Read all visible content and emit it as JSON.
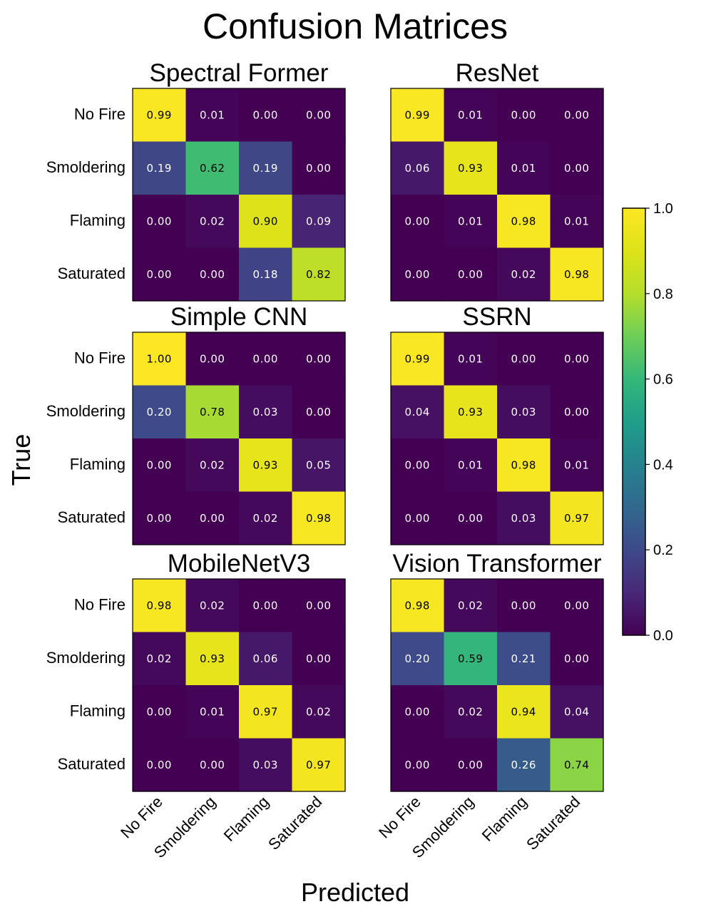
{
  "title": "Confusion Matrices",
  "chart_data": {
    "type": "heatmap",
    "xlabel": "Predicted",
    "ylabel": "True",
    "classes": [
      "No Fire",
      "Smoldering",
      "Flaming",
      "Saturated"
    ],
    "colorbar": {
      "min": 0.0,
      "max": 1.0,
      "ticks": [
        "0.0",
        "0.2",
        "0.4",
        "0.6",
        "0.8",
        "1.0"
      ],
      "colormap": "viridis"
    },
    "matrices": [
      {
        "name": "Spectral Former",
        "values": [
          [
            0.99,
            0.01,
            0.0,
            0.0
          ],
          [
            0.19,
            0.62,
            0.19,
            0.0
          ],
          [
            0.0,
            0.02,
            0.9,
            0.09
          ],
          [
            0.0,
            0.0,
            0.18,
            0.82
          ]
        ]
      },
      {
        "name": "ResNet",
        "values": [
          [
            0.99,
            0.01,
            0.0,
            0.0
          ],
          [
            0.06,
            0.93,
            0.01,
            0.0
          ],
          [
            0.0,
            0.01,
            0.98,
            0.01
          ],
          [
            0.0,
            0.0,
            0.02,
            0.98
          ]
        ]
      },
      {
        "name": "Simple CNN",
        "values": [
          [
            1.0,
            0.0,
            0.0,
            0.0
          ],
          [
            0.2,
            0.78,
            0.03,
            0.0
          ],
          [
            0.0,
            0.02,
            0.93,
            0.05
          ],
          [
            0.0,
            0.0,
            0.02,
            0.98
          ]
        ]
      },
      {
        "name": "SSRN",
        "values": [
          [
            0.99,
            0.01,
            0.0,
            0.0
          ],
          [
            0.04,
            0.93,
            0.03,
            0.0
          ],
          [
            0.0,
            0.01,
            0.98,
            0.01
          ],
          [
            0.0,
            0.0,
            0.03,
            0.97
          ]
        ]
      },
      {
        "name": "MobileNetV3",
        "values": [
          [
            0.98,
            0.02,
            0.0,
            0.0
          ],
          [
            0.02,
            0.93,
            0.06,
            0.0
          ],
          [
            0.0,
            0.01,
            0.97,
            0.02
          ],
          [
            0.0,
            0.0,
            0.03,
            0.97
          ]
        ]
      },
      {
        "name": "Vision Transformer",
        "values": [
          [
            0.98,
            0.02,
            0.0,
            0.0
          ],
          [
            0.2,
            0.59,
            0.21,
            0.0
          ],
          [
            0.0,
            0.02,
            0.94,
            0.04
          ],
          [
            0.0,
            0.0,
            0.26,
            0.74
          ]
        ]
      }
    ]
  }
}
